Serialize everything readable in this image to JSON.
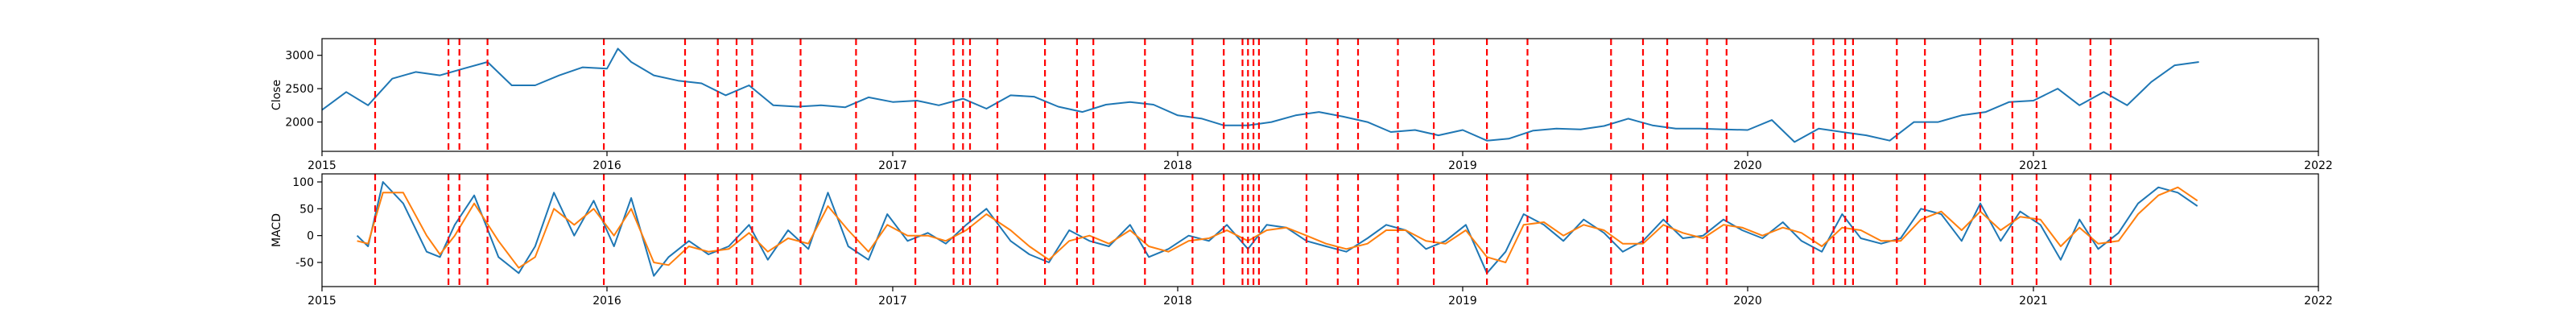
{
  "chart_data": [
    {
      "type": "line",
      "ylabel": "Close",
      "xlim": [
        "2015-01-01",
        "2022-01-01"
      ],
      "ylim": [
        1560,
        3250
      ],
      "x_ticks": [
        "2015",
        "2016",
        "2017",
        "2018",
        "2019",
        "2020",
        "2021",
        "2022"
      ],
      "y_ticks": [
        2000,
        2500,
        3000
      ],
      "grid": false,
      "series": [
        {
          "color": "#1f77b4",
          "x": [
            "2015-01-01",
            "2015-02-01",
            "2015-03-01",
            "2015-04-01",
            "2015-05-01",
            "2015-06-01",
            "2015-07-01",
            "2015-08-01",
            "2015-09-01",
            "2015-10-01",
            "2015-11-01",
            "2015-12-01",
            "2016-01-01",
            "2016-01-15",
            "2016-02-01",
            "2016-03-01",
            "2016-04-01",
            "2016-05-01",
            "2016-06-01",
            "2016-07-01",
            "2016-08-01",
            "2016-09-01",
            "2016-10-01",
            "2016-11-01",
            "2016-12-01",
            "2017-01-01",
            "2017-02-01",
            "2017-03-01",
            "2017-04-01",
            "2017-05-01",
            "2017-06-01",
            "2017-07-01",
            "2017-08-01",
            "2017-09-01",
            "2017-10-01",
            "2017-11-01",
            "2017-12-01",
            "2018-01-01",
            "2018-02-01",
            "2018-03-01",
            "2018-04-01",
            "2018-05-01",
            "2018-06-01",
            "2018-07-01",
            "2018-08-01",
            "2018-09-01",
            "2018-10-01",
            "2018-11-01",
            "2018-12-01",
            "2019-01-01",
            "2019-02-01",
            "2019-03-01",
            "2019-04-01",
            "2019-05-01",
            "2019-06-01",
            "2019-07-01",
            "2019-08-01",
            "2019-09-01",
            "2019-10-01",
            "2019-11-01",
            "2019-12-01",
            "2020-01-01",
            "2020-02-01",
            "2020-03-01",
            "2020-04-01",
            "2020-05-01",
            "2020-06-01",
            "2020-07-01",
            "2020-08-01",
            "2020-09-01",
            "2020-10-01",
            "2020-11-01",
            "2020-12-01",
            "2021-01-01",
            "2021-02-01",
            "2021-03-01",
            "2021-04-01",
            "2021-05-01",
            "2021-06-01",
            "2021-07-01",
            "2021-08-01"
          ],
          "values": [
            2180,
            2450,
            2250,
            2650,
            2750,
            2700,
            2800,
            2900,
            2550,
            2550,
            2700,
            2820,
            2800,
            3100,
            2900,
            2700,
            2620,
            2580,
            2400,
            2550,
            2250,
            2230,
            2250,
            2220,
            2370,
            2300,
            2320,
            2250,
            2350,
            2200,
            2400,
            2380,
            2230,
            2150,
            2260,
            2300,
            2260,
            2100,
            2050,
            1950,
            1950,
            2000,
            2100,
            2150,
            2080,
            2000,
            1850,
            1880,
            1800,
            1880,
            1720,
            1750,
            1870,
            1900,
            1890,
            1940,
            2050,
            1950,
            1900,
            1900,
            1890,
            1880,
            2030,
            1700,
            1900,
            1850,
            1800,
            1720,
            2000,
            2000,
            2100,
            2150,
            2300,
            2320,
            2500,
            2250,
            2450,
            2250,
            2600,
            2850,
            2900
          ]
        }
      ]
    },
    {
      "type": "line",
      "ylabel": "MACD",
      "xlim": [
        "2015-01-01",
        "2022-01-01"
      ],
      "ylim": [
        -95,
        115
      ],
      "x_ticks": [
        "2015",
        "2016",
        "2017",
        "2018",
        "2019",
        "2020",
        "2021",
        "2022"
      ],
      "y_ticks": [
        -50,
        0,
        50,
        100
      ],
      "grid": false,
      "series": [
        {
          "color": "#1f77b4",
          "x": [
            "2015-02-15",
            "2015-03-01",
            "2015-03-20",
            "2015-04-15",
            "2015-05-15",
            "2015-06-01",
            "2015-06-20",
            "2015-07-15",
            "2015-08-15",
            "2015-09-10",
            "2015-10-01",
            "2015-10-25",
            "2015-11-20",
            "2015-12-15",
            "2016-01-10",
            "2016-02-01",
            "2016-03-01",
            "2016-03-20",
            "2016-04-15",
            "2016-05-10",
            "2016-06-05",
            "2016-07-01",
            "2016-07-25",
            "2016-08-20",
            "2016-09-15",
            "2016-10-10",
            "2016-11-05",
            "2016-12-01",
            "2016-12-25",
            "2017-01-20",
            "2017-02-15",
            "2017-03-10",
            "2017-04-05",
            "2017-05-01",
            "2017-06-01",
            "2017-06-25",
            "2017-07-20",
            "2017-08-15",
            "2017-09-10",
            "2017-10-05",
            "2017-11-01",
            "2017-11-25",
            "2017-12-20",
            "2018-01-15",
            "2018-02-10",
            "2018-03-05",
            "2018-04-01",
            "2018-04-25",
            "2018-05-20",
            "2018-06-15",
            "2018-07-10",
            "2018-08-05",
            "2018-09-01",
            "2018-09-25",
            "2018-10-20",
            "2018-11-15",
            "2018-12-10",
            "2019-01-05",
            "2019-02-01",
            "2019-02-25",
            "2019-03-20",
            "2019-04-15",
            "2019-05-10",
            "2019-06-05",
            "2019-07-01",
            "2019-07-25",
            "2019-08-20",
            "2019-09-15",
            "2019-10-10",
            "2019-11-05",
            "2019-12-01",
            "2019-12-25",
            "2020-01-20",
            "2020-02-15",
            "2020-03-10",
            "2020-04-05",
            "2020-05-01",
            "2020-05-25",
            "2020-06-20",
            "2020-07-15",
            "2020-08-10",
            "2020-09-05",
            "2020-10-01",
            "2020-10-25",
            "2020-11-20",
            "2020-12-15",
            "2021-01-10",
            "2021-02-05",
            "2021-03-01",
            "2021-03-25",
            "2021-04-20",
            "2021-05-15",
            "2021-06-10",
            "2021-07-05",
            "2021-07-30"
          ],
          "values": [
            0,
            -20,
            100,
            60,
            -30,
            -40,
            20,
            75,
            -40,
            -70,
            -20,
            80,
            0,
            65,
            -20,
            70,
            -75,
            -40,
            -10,
            -35,
            -20,
            20,
            -45,
            10,
            -25,
            80,
            -20,
            -45,
            40,
            -10,
            5,
            -15,
            20,
            50,
            -10,
            -35,
            -50,
            10,
            -10,
            -20,
            20,
            -40,
            -25,
            0,
            -10,
            20,
            -25,
            20,
            15,
            -10,
            -20,
            -30,
            -5,
            20,
            10,
            -25,
            -10,
            20,
            -70,
            -30,
            40,
            20,
            -10,
            30,
            5,
            -30,
            -10,
            30,
            -5,
            0,
            30,
            10,
            -5,
            25,
            -10,
            -30,
            40,
            -5,
            -15,
            -5,
            50,
            40,
            -10,
            60,
            -10,
            45,
            20,
            -45,
            30,
            -25,
            5,
            60,
            90,
            80,
            55
          ]
        },
        {
          "color": "#ff7f0e",
          "x": [
            "2015-02-15",
            "2015-03-01",
            "2015-03-20",
            "2015-04-15",
            "2015-05-15",
            "2015-06-01",
            "2015-06-20",
            "2015-07-15",
            "2015-08-15",
            "2015-09-10",
            "2015-10-01",
            "2015-10-25",
            "2015-11-20",
            "2015-12-15",
            "2016-01-10",
            "2016-02-01",
            "2016-03-01",
            "2016-03-20",
            "2016-04-15",
            "2016-05-10",
            "2016-06-05",
            "2016-07-01",
            "2016-07-25",
            "2016-08-20",
            "2016-09-15",
            "2016-10-10",
            "2016-11-05",
            "2016-12-01",
            "2016-12-25",
            "2017-01-20",
            "2017-02-15",
            "2017-03-10",
            "2017-04-05",
            "2017-05-01",
            "2017-06-01",
            "2017-06-25",
            "2017-07-20",
            "2017-08-15",
            "2017-09-10",
            "2017-10-05",
            "2017-11-01",
            "2017-11-25",
            "2017-12-20",
            "2018-01-15",
            "2018-02-10",
            "2018-03-05",
            "2018-04-01",
            "2018-04-25",
            "2018-05-20",
            "2018-06-15",
            "2018-07-10",
            "2018-08-05",
            "2018-09-01",
            "2018-09-25",
            "2018-10-20",
            "2018-11-15",
            "2018-12-10",
            "2019-01-05",
            "2019-02-01",
            "2019-02-25",
            "2019-03-20",
            "2019-04-15",
            "2019-05-10",
            "2019-06-05",
            "2019-07-01",
            "2019-07-25",
            "2019-08-20",
            "2019-09-15",
            "2019-10-10",
            "2019-11-05",
            "2019-12-01",
            "2019-12-25",
            "2020-01-20",
            "2020-02-15",
            "2020-03-10",
            "2020-04-05",
            "2020-05-01",
            "2020-05-25",
            "2020-06-20",
            "2020-07-15",
            "2020-08-10",
            "2020-09-05",
            "2020-10-01",
            "2020-10-25",
            "2020-11-20",
            "2020-12-15",
            "2021-01-10",
            "2021-02-05",
            "2021-03-01",
            "2021-03-25",
            "2021-04-20",
            "2021-05-15",
            "2021-06-10",
            "2021-07-05",
            "2021-07-30"
          ],
          "values": [
            -10,
            -15,
            80,
            80,
            0,
            -35,
            0,
            60,
            -10,
            -60,
            -40,
            50,
            20,
            50,
            0,
            50,
            -50,
            -55,
            -20,
            -30,
            -25,
            5,
            -30,
            -5,
            -15,
            55,
            10,
            -30,
            20,
            0,
            0,
            -10,
            10,
            40,
            10,
            -20,
            -45,
            -10,
            0,
            -15,
            10,
            -20,
            -30,
            -10,
            -5,
            10,
            -10,
            10,
            15,
            0,
            -15,
            -25,
            -15,
            10,
            10,
            -10,
            -15,
            10,
            -40,
            -50,
            20,
            25,
            0,
            20,
            10,
            -15,
            -15,
            20,
            5,
            -5,
            20,
            15,
            0,
            15,
            5,
            -20,
            15,
            10,
            -10,
            -10,
            30,
            45,
            10,
            45,
            10,
            35,
            30,
            -20,
            15,
            -15,
            -10,
            40,
            75,
            90,
            65
          ]
        }
      ]
    }
  ],
  "event_dates": [
    "2015-03-10",
    "2015-06-12",
    "2015-06-26",
    "2015-08-01",
    "2015-12-28",
    "2016-04-10",
    "2016-05-22",
    "2016-06-15",
    "2016-07-05",
    "2016-09-05",
    "2016-11-15",
    "2017-01-30",
    "2017-03-20",
    "2017-04-01",
    "2017-04-10",
    "2017-05-15",
    "2017-07-15",
    "2017-08-25",
    "2017-09-15",
    "2017-11-20",
    "2018-01-20",
    "2018-03-01",
    "2018-03-25",
    "2018-04-01",
    "2018-04-08",
    "2018-04-15",
    "2018-06-15",
    "2018-07-25",
    "2018-08-20",
    "2018-10-10",
    "2018-11-25",
    "2019-02-01",
    "2019-03-25",
    "2019-07-10",
    "2019-08-20",
    "2019-09-20",
    "2019-11-10",
    "2019-12-05",
    "2020-03-25",
    "2020-04-20",
    "2020-05-05",
    "2020-05-15",
    "2020-07-10",
    "2020-08-15",
    "2020-10-25",
    "2020-12-05",
    "2021-01-05",
    "2021-03-15",
    "2021-04-10"
  ],
  "colors": {
    "series_close": "#1f77b4",
    "series_signal": "#ff7f0e",
    "event_lines": "#ff0000"
  }
}
